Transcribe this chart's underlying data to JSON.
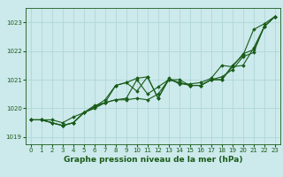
{
  "xlabel": "Graphe pression niveau de la mer (hPa)",
  "xlim": [
    -0.5,
    23.5
  ],
  "ylim": [
    1018.75,
    1023.5
  ],
  "yticks": [
    1019,
    1020,
    1021,
    1022,
    1023
  ],
  "xticks": [
    0,
    1,
    2,
    3,
    4,
    5,
    6,
    7,
    8,
    9,
    10,
    11,
    12,
    13,
    14,
    15,
    16,
    17,
    18,
    19,
    20,
    21,
    22,
    23
  ],
  "background_color": "#cce9eb",
  "grid_color": "#aad4d6",
  "line_color": "#1a5c1a",
  "series": [
    [
      1019.6,
      1019.6,
      1019.6,
      1019.5,
      1019.7,
      1019.85,
      1020.1,
      1020.2,
      1020.3,
      1020.35,
      1021.0,
      1020.5,
      1020.75,
      1021.0,
      1020.9,
      1020.8,
      1020.8,
      1021.0,
      1021.0,
      1021.5,
      1021.85,
      1022.75,
      1022.95,
      1023.2
    ],
    [
      1019.6,
      1019.6,
      1019.5,
      1019.4,
      1019.5,
      1019.85,
      1020.0,
      1020.2,
      1020.3,
      1020.3,
      1020.35,
      1020.3,
      1020.5,
      1021.0,
      1021.0,
      1020.8,
      1020.8,
      1021.0,
      1021.1,
      1021.35,
      1021.8,
      1021.95,
      1022.85,
      1023.2
    ],
    [
      1019.6,
      1019.6,
      1019.5,
      1019.4,
      1019.5,
      1019.85,
      1020.05,
      1020.2,
      1020.8,
      1020.9,
      1020.6,
      1021.1,
      1020.35,
      1021.0,
      1020.9,
      1020.8,
      1020.8,
      1021.0,
      1021.0,
      1021.45,
      1021.5,
      1022.1,
      1022.85,
      1023.2
    ],
    [
      1019.6,
      1019.6,
      1019.5,
      1019.4,
      1019.5,
      1019.85,
      1020.05,
      1020.3,
      1020.8,
      1020.9,
      1021.05,
      1021.1,
      1020.35,
      1021.05,
      1020.85,
      1020.85,
      1020.9,
      1021.05,
      1021.5,
      1021.45,
      1021.9,
      1022.05,
      1022.85,
      1023.2
    ]
  ],
  "marker": "D",
  "markersize": 1.8,
  "linewidth": 0.8,
  "tick_fontsize": 5.0,
  "label_fontsize": 6.5,
  "label_fontweight": "bold"
}
